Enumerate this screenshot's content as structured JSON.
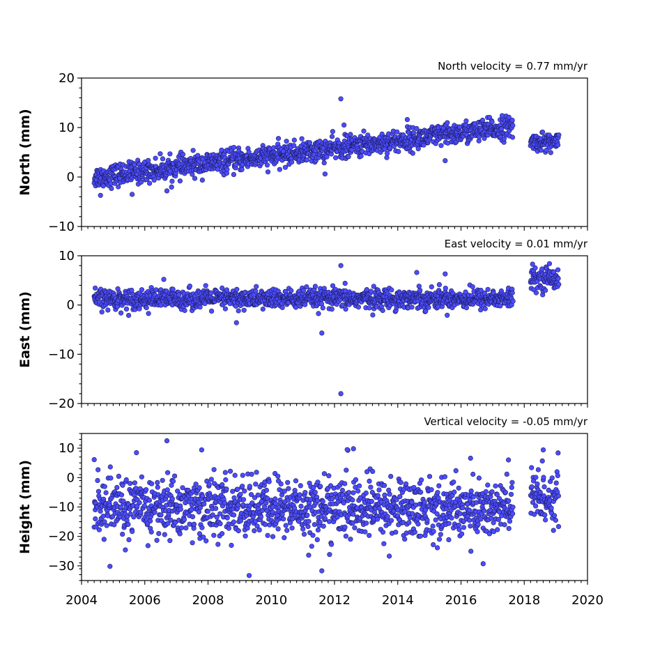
{
  "chart_data": [
    {
      "type": "scatter",
      "title": "North velocity = 0.77 mm/yr",
      "ylabel": "North (mm)",
      "xlim": [
        2004,
        2020
      ],
      "ylim": [
        -10,
        20
      ],
      "xticks": [
        2004,
        2006,
        2008,
        2010,
        2012,
        2014,
        2016,
        2018,
        2020
      ],
      "yticks": [
        -10,
        0,
        10,
        20
      ],
      "ytick_labels": [
        "−10",
        "0",
        "10",
        "20"
      ],
      "show_xtick_labels": false,
      "trend": {
        "slope": 0.77,
        "offset": 0.0,
        "ref_year": 2004.5,
        "noise": 1.1
      },
      "clusters": [
        {
          "x_range": [
            2004.4,
            2017.65
          ],
          "mode": "trend"
        },
        {
          "x_range": [
            2018.2,
            2019.1
          ],
          "center": 7.1,
          "spread": 0.9
        }
      ],
      "outliers": [
        {
          "x": 2012.2,
          "y": 15.8
        },
        {
          "x": 2012.3,
          "y": 10.5
        },
        {
          "x": 2011.7,
          "y": 0.6
        },
        {
          "x": 2006.7,
          "y": -2.8
        },
        {
          "x": 2004.6,
          "y": -3.7
        },
        {
          "x": 2005.6,
          "y": -3.5
        },
        {
          "x": 2014.3,
          "y": 11.6
        },
        {
          "x": 2017.3,
          "y": 12.4
        },
        {
          "x": 2015.5,
          "y": 3.3
        }
      ],
      "grid": false,
      "marker_color": "#4c4cff",
      "marker_edge": "#1a1a5a"
    },
    {
      "type": "scatter",
      "title": "East velocity = 0.01 mm/yr",
      "ylabel": "East (mm)",
      "xlim": [
        2004,
        2020
      ],
      "ylim": [
        -20,
        10
      ],
      "xticks": [
        2004,
        2006,
        2008,
        2010,
        2012,
        2014,
        2016,
        2018,
        2020
      ],
      "yticks": [
        -20,
        -10,
        0,
        10
      ],
      "ytick_labels": [
        "−20",
        "−10",
        "0",
        "10"
      ],
      "show_xtick_labels": false,
      "trend": {
        "slope": 0.01,
        "offset": 1.2,
        "ref_year": 2004.5,
        "noise": 1.0
      },
      "clusters": [
        {
          "x_range": [
            2004.4,
            2017.65
          ],
          "mode": "trend"
        },
        {
          "x_range": [
            2018.2,
            2019.1
          ],
          "center": 5.4,
          "spread": 1.1
        }
      ],
      "outliers": [
        {
          "x": 2012.2,
          "y": -18.0
        },
        {
          "x": 2011.6,
          "y": -5.7
        },
        {
          "x": 2012.2,
          "y": 8.0
        },
        {
          "x": 2014.6,
          "y": 6.6
        },
        {
          "x": 2008.9,
          "y": -3.6
        },
        {
          "x": 2006.6,
          "y": 5.2
        },
        {
          "x": 2018.8,
          "y": 8.4
        },
        {
          "x": 2015.5,
          "y": 6.3
        }
      ],
      "grid": false,
      "marker_color": "#4c4cff",
      "marker_edge": "#1a1a5a"
    },
    {
      "type": "scatter",
      "title": "Vertical velocity = -0.05 mm/yr",
      "ylabel": "Height (mm)",
      "xlim": [
        2004,
        2020
      ],
      "ylim": [
        -35,
        15
      ],
      "xticks": [
        2004,
        2006,
        2008,
        2010,
        2012,
        2014,
        2016,
        2018,
        2020
      ],
      "yticks": [
        -30,
        -20,
        -10,
        0,
        10
      ],
      "ytick_labels": [
        "−30",
        "−20",
        "−10",
        "0",
        "10"
      ],
      "show_xtick_labels": true,
      "xtick_labels": [
        "2004",
        "2006",
        "2008",
        "2010",
        "2012",
        "2014",
        "2016",
        "2018",
        "2020"
      ],
      "trend": {
        "slope": -0.05,
        "offset": -10.0,
        "ref_year": 2004.5,
        "noise": 5.2
      },
      "clusters": [
        {
          "x_range": [
            2004.4,
            2017.65
          ],
          "mode": "trend"
        },
        {
          "x_range": [
            2018.2,
            2019.1
          ],
          "center": -6.5,
          "spread": 5.0
        }
      ],
      "outliers": [
        {
          "x": 2006.7,
          "y": 12.5
        },
        {
          "x": 2009.3,
          "y": -33.3
        },
        {
          "x": 2011.6,
          "y": -31.7
        },
        {
          "x": 2004.9,
          "y": -30.2
        },
        {
          "x": 2012.4,
          "y": 9.5
        },
        {
          "x": 2012.6,
          "y": 9.8
        },
        {
          "x": 2007.8,
          "y": 9.4
        },
        {
          "x": 2018.6,
          "y": 9.4
        },
        {
          "x": 2016.7,
          "y": -29.3
        },
        {
          "x": 2004.4,
          "y": 6.1
        },
        {
          "x": 2017.5,
          "y": 6.0
        }
      ],
      "grid": false,
      "marker_color": "#4c4cff",
      "marker_edge": "#1a1a5a"
    }
  ]
}
